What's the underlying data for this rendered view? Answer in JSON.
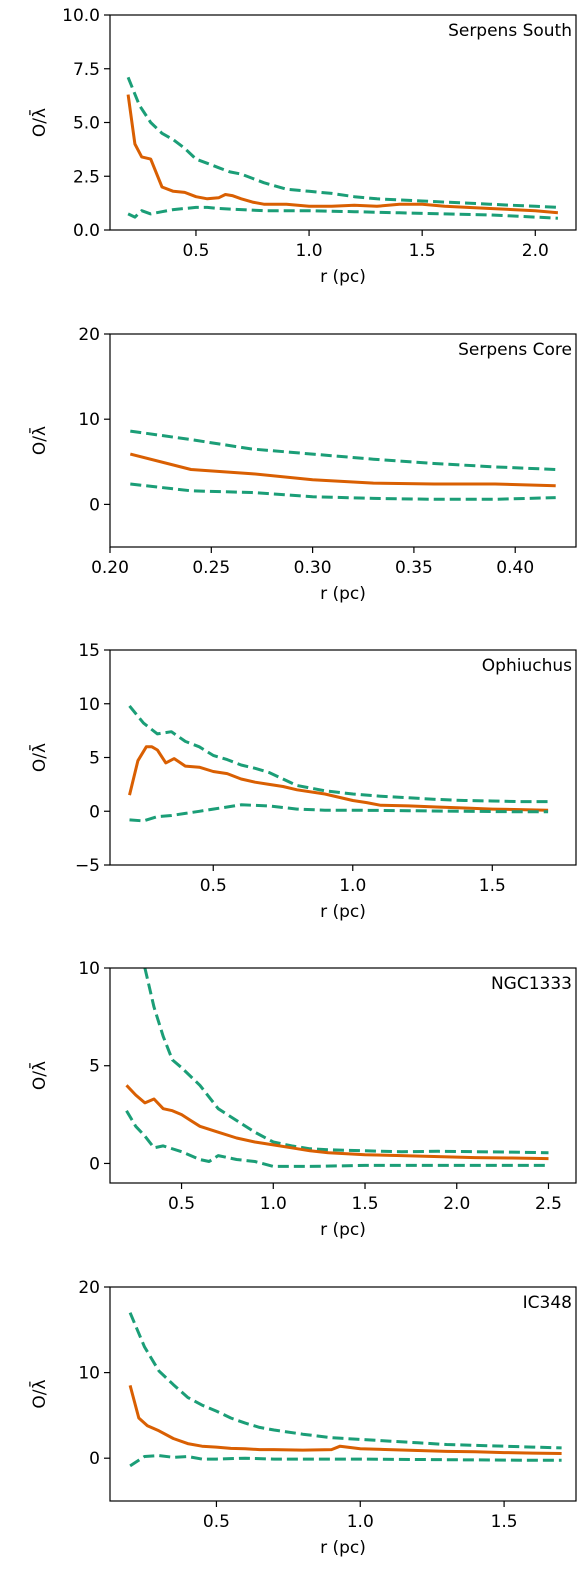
{
  "colors": {
    "median": "#d95f02",
    "bounds": "#1b9e77",
    "axis": "#000000"
  },
  "chart_data": [
    {
      "type": "line",
      "title": "Serpens South",
      "xlabel": "r (pc)",
      "ylabel": "O/λ̄",
      "xlim": [
        0.12,
        2.18
      ],
      "ylim": [
        0.0,
        10.0
      ],
      "xticks": [
        0.5,
        1.0,
        1.5,
        2.0
      ],
      "xtick_labels": [
        "0.5",
        "1.0",
        "1.5",
        "2.0"
      ],
      "yticks": [
        0.0,
        2.5,
        5.0,
        7.5,
        10.0
      ],
      "ytick_labels": [
        "0.0",
        "2.5",
        "5.0",
        "7.5",
        "10.0"
      ],
      "series": [
        {
          "role": "upper",
          "style": "dashed",
          "x": [
            0.2,
            0.25,
            0.3,
            0.35,
            0.4,
            0.45,
            0.5,
            0.55,
            0.6,
            0.65,
            0.7,
            0.75,
            0.8,
            0.9,
            1.0,
            1.1,
            1.2,
            1.3,
            1.4,
            1.5,
            1.6,
            1.7,
            1.8,
            1.9,
            2.0,
            2.1
          ],
          "y": [
            7.1,
            5.8,
            5.0,
            4.5,
            4.2,
            3.8,
            3.3,
            3.1,
            2.9,
            2.7,
            2.6,
            2.4,
            2.2,
            1.9,
            1.8,
            1.7,
            1.55,
            1.45,
            1.4,
            1.35,
            1.3,
            1.25,
            1.2,
            1.15,
            1.1,
            1.05
          ]
        },
        {
          "role": "median",
          "style": "solid",
          "x": [
            0.2,
            0.23,
            0.26,
            0.3,
            0.35,
            0.4,
            0.45,
            0.5,
            0.55,
            0.6,
            0.63,
            0.66,
            0.7,
            0.75,
            0.8,
            0.9,
            1.0,
            1.1,
            1.2,
            1.3,
            1.4,
            1.5,
            1.6,
            1.7,
            1.8,
            1.9,
            2.0,
            2.1
          ],
          "y": [
            6.3,
            4.0,
            3.4,
            3.3,
            2.0,
            1.8,
            1.75,
            1.55,
            1.45,
            1.5,
            1.65,
            1.6,
            1.45,
            1.3,
            1.2,
            1.2,
            1.1,
            1.1,
            1.15,
            1.1,
            1.2,
            1.2,
            1.1,
            1.05,
            1.0,
            0.95,
            0.9,
            0.8
          ]
        },
        {
          "role": "lower",
          "style": "dashed",
          "x": [
            0.2,
            0.23,
            0.26,
            0.3,
            0.35,
            0.4,
            0.45,
            0.5,
            0.55,
            0.6,
            0.7,
            0.8,
            0.9,
            1.0,
            1.2,
            1.4,
            1.6,
            1.8,
            2.0,
            2.1
          ],
          "y": [
            0.75,
            0.6,
            0.9,
            0.75,
            0.85,
            0.95,
            1.0,
            1.05,
            1.05,
            1.0,
            0.95,
            0.9,
            0.9,
            0.9,
            0.85,
            0.8,
            0.75,
            0.7,
            0.6,
            0.55
          ]
        }
      ]
    },
    {
      "type": "line",
      "title": "Serpens Core",
      "xlabel": "r (pc)",
      "ylabel": "O/λ̄",
      "xlim": [
        0.2,
        0.43
      ],
      "ylim": [
        -5.0,
        20.0
      ],
      "xticks": [
        0.2,
        0.25,
        0.3,
        0.35,
        0.4
      ],
      "xtick_labels": [
        "0.20",
        "0.25",
        "0.30",
        "0.35",
        "0.40"
      ],
      "yticks": [
        0,
        10,
        20
      ],
      "ytick_labels": [
        "0",
        "10",
        "20"
      ],
      "series": [
        {
          "role": "upper",
          "style": "dashed",
          "x": [
            0.21,
            0.24,
            0.27,
            0.3,
            0.33,
            0.36,
            0.39,
            0.42
          ],
          "y": [
            8.6,
            7.6,
            6.5,
            5.9,
            5.3,
            4.8,
            4.4,
            4.1
          ]
        },
        {
          "role": "median",
          "style": "solid",
          "x": [
            0.21,
            0.24,
            0.27,
            0.3,
            0.33,
            0.36,
            0.39,
            0.42
          ],
          "y": [
            5.9,
            4.1,
            3.6,
            2.9,
            2.5,
            2.4,
            2.4,
            2.2
          ]
        },
        {
          "role": "lower",
          "style": "dashed",
          "x": [
            0.21,
            0.24,
            0.27,
            0.3,
            0.33,
            0.36,
            0.39,
            0.42
          ],
          "y": [
            2.4,
            1.6,
            1.4,
            0.9,
            0.7,
            0.6,
            0.6,
            0.8
          ]
        }
      ]
    },
    {
      "type": "line",
      "title": "Ophiuchus",
      "xlabel": "r (pc)",
      "ylabel": "O/λ̄",
      "xlim": [
        0.13,
        1.8
      ],
      "ylim": [
        -5.0,
        15.0
      ],
      "xticks": [
        0.5,
        1.0,
        1.5
      ],
      "xtick_labels": [
        "0.5",
        "1.0",
        "1.5"
      ],
      "yticks": [
        -5,
        0,
        5,
        10,
        15
      ],
      "ytick_labels": [
        "−5",
        "0",
        "5",
        "10",
        "15"
      ],
      "series": [
        {
          "role": "upper",
          "style": "dashed",
          "x": [
            0.2,
            0.25,
            0.3,
            0.35,
            0.4,
            0.45,
            0.5,
            0.55,
            0.6,
            0.65,
            0.7,
            0.75,
            0.8,
            0.9,
            1.0,
            1.1,
            1.2,
            1.3,
            1.4,
            1.5,
            1.6,
            1.7
          ],
          "y": [
            9.8,
            8.2,
            7.2,
            7.4,
            6.5,
            6.0,
            5.2,
            4.8,
            4.3,
            4.0,
            3.6,
            3.0,
            2.4,
            1.9,
            1.6,
            1.4,
            1.25,
            1.1,
            1.0,
            0.95,
            0.9,
            0.9
          ]
        },
        {
          "role": "median",
          "style": "solid",
          "x": [
            0.2,
            0.23,
            0.26,
            0.28,
            0.3,
            0.33,
            0.36,
            0.4,
            0.45,
            0.5,
            0.55,
            0.6,
            0.65,
            0.7,
            0.75,
            0.8,
            0.9,
            1.0,
            1.05,
            1.1,
            1.2,
            1.3,
            1.4,
            1.5,
            1.6,
            1.7
          ],
          "y": [
            1.5,
            4.7,
            6.0,
            6.0,
            5.7,
            4.5,
            4.9,
            4.2,
            4.1,
            3.7,
            3.5,
            3.0,
            2.7,
            2.5,
            2.3,
            2.0,
            1.6,
            1.0,
            0.8,
            0.55,
            0.5,
            0.4,
            0.3,
            0.2,
            0.15,
            0.1
          ]
        },
        {
          "role": "lower",
          "style": "dashed",
          "x": [
            0.2,
            0.25,
            0.3,
            0.35,
            0.4,
            0.45,
            0.5,
            0.55,
            0.6,
            0.7,
            0.8,
            0.9,
            1.0,
            1.2,
            1.4,
            1.6,
            1.7
          ],
          "y": [
            -0.8,
            -0.9,
            -0.5,
            -0.4,
            -0.2,
            0.0,
            0.2,
            0.4,
            0.6,
            0.5,
            0.2,
            0.1,
            0.1,
            0.05,
            0.0,
            -0.05,
            -0.05
          ]
        }
      ]
    },
    {
      "type": "line",
      "title": "NGC1333",
      "xlabel": "r (pc)",
      "ylabel": "O/λ̄",
      "xlim": [
        0.11,
        2.65
      ],
      "ylim": [
        -1.0,
        10.0
      ],
      "xticks": [
        0.5,
        1.0,
        1.5,
        2.0,
        2.5
      ],
      "xtick_labels": [
        "0.5",
        "1.0",
        "1.5",
        "2.0",
        "2.5"
      ],
      "yticks": [
        0,
        5,
        10
      ],
      "ytick_labels": [
        "0",
        "5",
        "10"
      ],
      "series": [
        {
          "role": "upper",
          "style": "dashed",
          "x": [
            0.3,
            0.35,
            0.4,
            0.45,
            0.5,
            0.6,
            0.7,
            0.8,
            0.9,
            1.0,
            1.1,
            1.2,
            1.3,
            1.5,
            1.7,
            1.9,
            2.1,
            2.3,
            2.5
          ],
          "y": [
            10.0,
            8.0,
            6.5,
            5.3,
            4.9,
            4.0,
            2.8,
            2.2,
            1.6,
            1.1,
            0.9,
            0.75,
            0.7,
            0.65,
            0.6,
            0.62,
            0.6,
            0.58,
            0.55
          ]
        },
        {
          "role": "median",
          "style": "solid",
          "x": [
            0.2,
            0.25,
            0.3,
            0.35,
            0.4,
            0.45,
            0.5,
            0.55,
            0.6,
            0.7,
            0.8,
            0.9,
            1.0,
            1.1,
            1.2,
            1.3,
            1.5,
            1.7,
            1.9,
            2.1,
            2.3,
            2.5
          ],
          "y": [
            4.0,
            3.5,
            3.1,
            3.3,
            2.8,
            2.7,
            2.5,
            2.2,
            1.9,
            1.6,
            1.3,
            1.1,
            0.95,
            0.8,
            0.65,
            0.55,
            0.45,
            0.4,
            0.35,
            0.3,
            0.28,
            0.25
          ]
        },
        {
          "role": "lower",
          "style": "dashed",
          "x": [
            0.2,
            0.25,
            0.3,
            0.35,
            0.4,
            0.5,
            0.6,
            0.65,
            0.7,
            0.8,
            0.9,
            1.0,
            1.2,
            1.5,
            2.0,
            2.5
          ],
          "y": [
            2.7,
            1.9,
            1.4,
            0.8,
            0.9,
            0.6,
            0.2,
            0.1,
            0.4,
            0.2,
            0.1,
            -0.15,
            -0.15,
            -0.1,
            -0.1,
            -0.1
          ]
        }
      ]
    },
    {
      "type": "line",
      "title": "IC348",
      "xlabel": "r (pc)",
      "ylabel": "O/λ̄",
      "xlim": [
        0.13,
        1.75
      ],
      "ylim": [
        -5.0,
        20.0
      ],
      "xticks": [
        0.5,
        1.0,
        1.5
      ],
      "xtick_labels": [
        "0.5",
        "1.0",
        "1.5"
      ],
      "yticks": [
        0,
        10,
        20
      ],
      "ytick_labels": [
        "0",
        "10",
        "20"
      ],
      "series": [
        {
          "role": "upper",
          "style": "dashed",
          "x": [
            0.2,
            0.25,
            0.3,
            0.35,
            0.4,
            0.45,
            0.5,
            0.55,
            0.6,
            0.65,
            0.7,
            0.8,
            0.9,
            1.0,
            1.1,
            1.2,
            1.3,
            1.4,
            1.5,
            1.6,
            1.7
          ],
          "y": [
            17.0,
            13.0,
            10.2,
            8.6,
            7.1,
            6.2,
            5.5,
            4.7,
            4.1,
            3.6,
            3.3,
            2.8,
            2.4,
            2.2,
            2.0,
            1.8,
            1.6,
            1.5,
            1.4,
            1.3,
            1.2
          ]
        },
        {
          "role": "median",
          "style": "solid",
          "x": [
            0.2,
            0.23,
            0.26,
            0.3,
            0.35,
            0.4,
            0.45,
            0.5,
            0.55,
            0.6,
            0.65,
            0.7,
            0.8,
            0.9,
            0.93,
            1.0,
            1.1,
            1.2,
            1.3,
            1.4,
            1.5,
            1.6,
            1.7
          ],
          "y": [
            8.5,
            4.7,
            3.8,
            3.2,
            2.3,
            1.7,
            1.4,
            1.3,
            1.15,
            1.1,
            1.0,
            1.0,
            0.95,
            1.0,
            1.4,
            1.1,
            1.0,
            0.9,
            0.8,
            0.75,
            0.65,
            0.6,
            0.55
          ]
        },
        {
          "role": "lower",
          "style": "dashed",
          "x": [
            0.2,
            0.25,
            0.3,
            0.35,
            0.4,
            0.45,
            0.5,
            0.6,
            0.7,
            0.8,
            1.0,
            1.2,
            1.4,
            1.6,
            1.7
          ],
          "y": [
            -0.9,
            0.2,
            0.3,
            0.1,
            0.2,
            -0.1,
            -0.1,
            0.0,
            -0.1,
            -0.1,
            -0.1,
            -0.15,
            -0.2,
            -0.25,
            -0.25
          ]
        }
      ]
    }
  ]
}
